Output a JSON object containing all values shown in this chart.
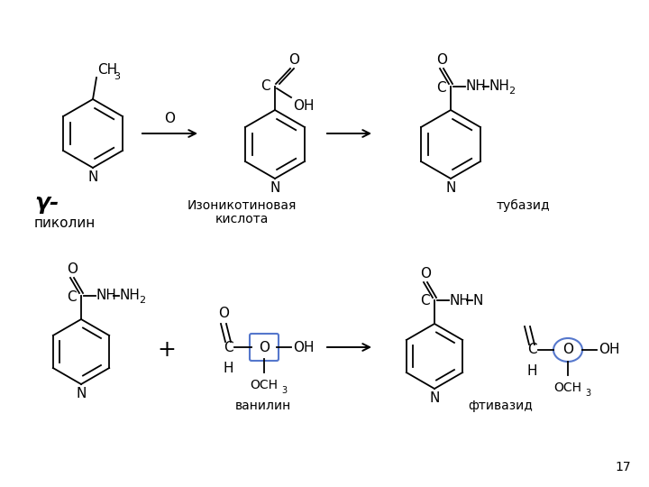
{
  "bg_color": "#ffffff",
  "fig_width": 7.2,
  "fig_height": 5.4,
  "dpi": 100,
  "page_number": "17",
  "label_gamma_bold": "γ-",
  "label_pikolinе": "пиколин",
  "label_isonicotinic1": "Изоникотиновая",
  "label_isonicotinic2": "кислота",
  "label_tubazid": "тубазид",
  "label_vanillin": "ванилин",
  "label_ftivazid": "фтивазид",
  "blue": "#5577cc"
}
